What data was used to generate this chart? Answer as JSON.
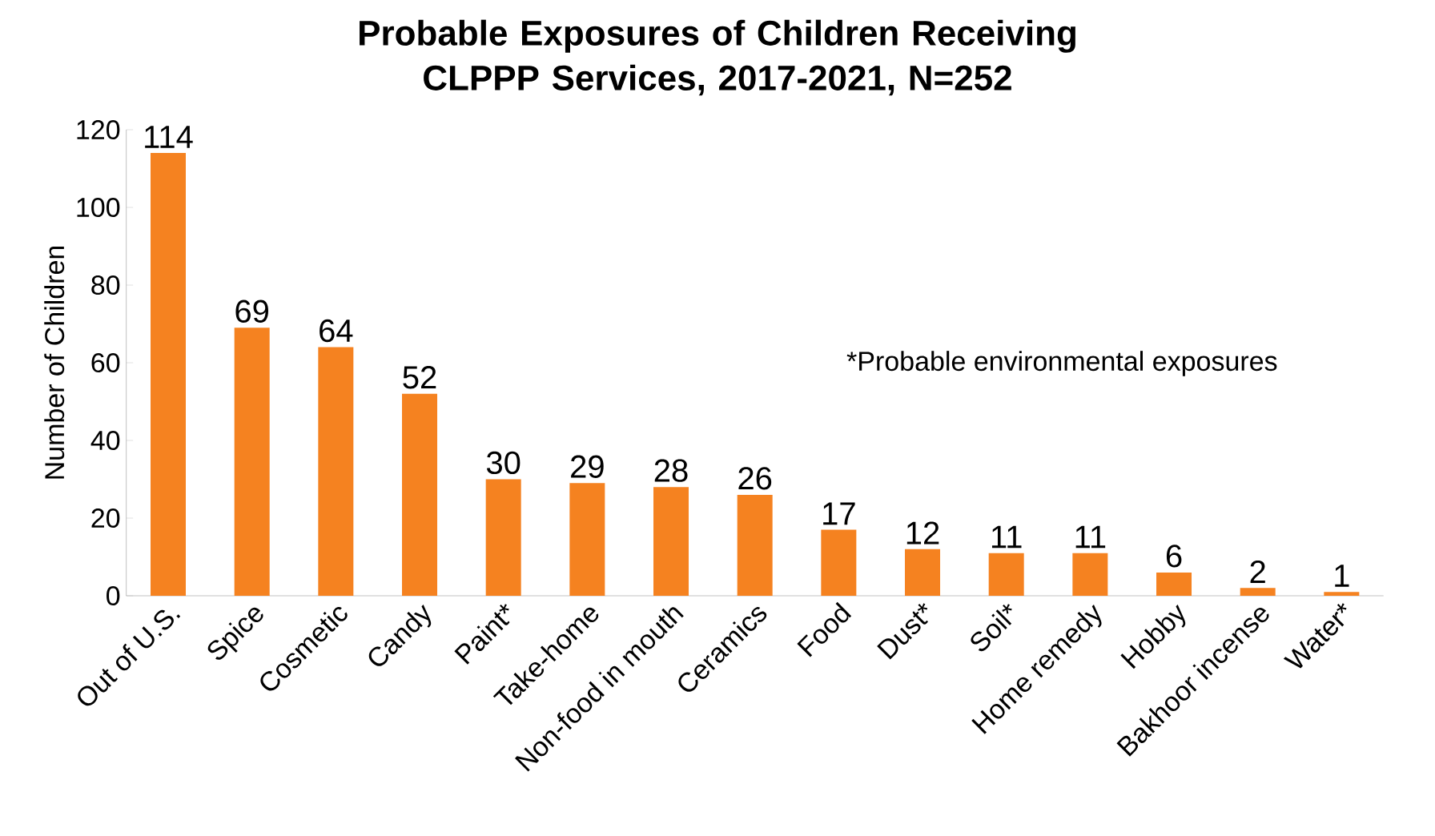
{
  "chart_data": {
    "type": "bar",
    "title": "Probable Exposures of Children Receiving CLPPP Services, 2017-2021, N=252",
    "ylabel": "Number of Children",
    "categories": [
      "Out of U.S.",
      "Spice",
      "Cosmetic",
      "Candy",
      "Paint*",
      "Take-home",
      "Non-food in mouth",
      "Ceramics",
      "Food",
      "Dust*",
      "Soil*",
      "Home remedy",
      "Hobby",
      "Bakhoor incense",
      "Water*"
    ],
    "values": [
      114,
      69,
      64,
      52,
      30,
      29,
      28,
      26,
      17,
      12,
      11,
      11,
      6,
      2,
      1
    ],
    "color": "#f58220",
    "ylim": [
      0,
      120
    ],
    "yticks": [
      0,
      20,
      40,
      60,
      80,
      100,
      120
    ],
    "data_labels": true,
    "grid": false,
    "annotations": [
      "*Probable environmental exposures"
    ]
  }
}
